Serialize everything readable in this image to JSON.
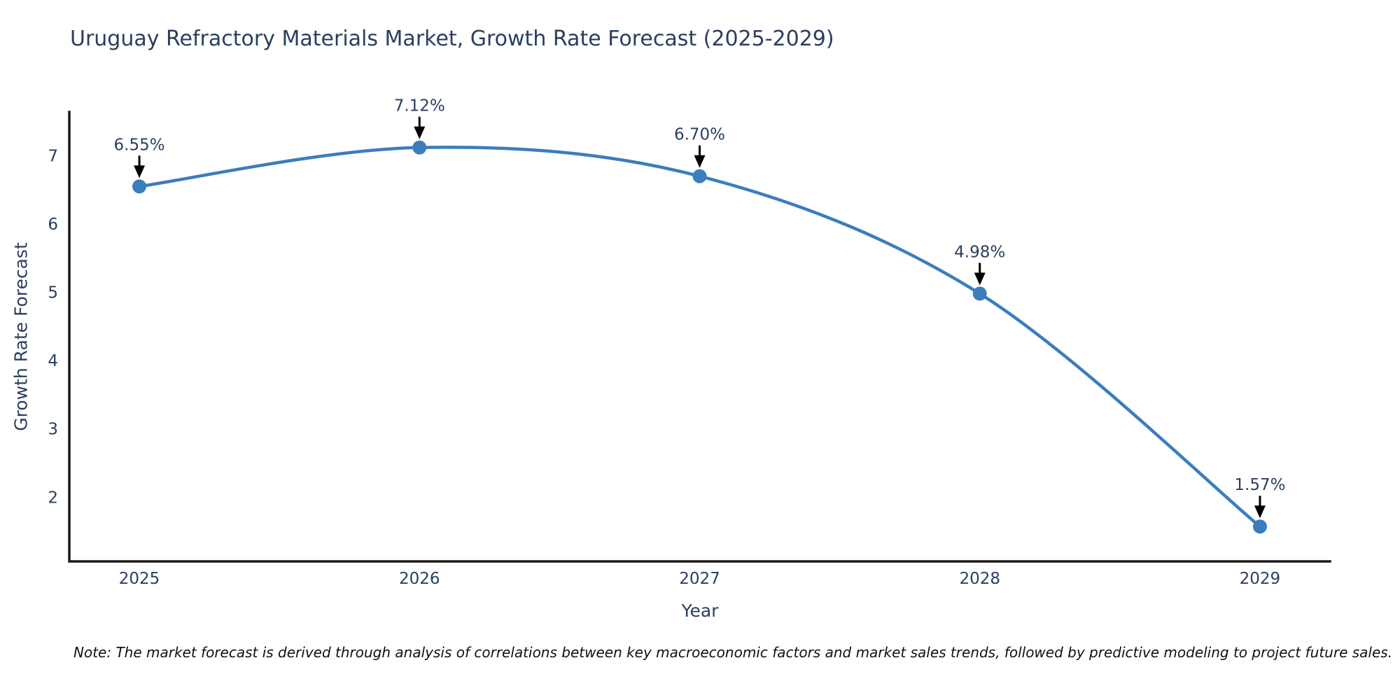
{
  "title": "Uruguay Refractory Materials Market, Growth Rate Forecast (2025-2029)",
  "note": "Note: The market forecast is derived through analysis of correlations between key macroeconomic factors and market sales trends, followed by predictive modeling to project future sales.",
  "chart_data": {
    "type": "line",
    "title": "Uruguay Refractory Materials Market, Growth Rate Forecast (2025-2029)",
    "xlabel": "Year",
    "ylabel": "Growth Rate Forecast",
    "x": [
      2025,
      2026,
      2027,
      2028,
      2029
    ],
    "values": [
      6.55,
      7.12,
      6.7,
      4.98,
      1.57
    ],
    "point_labels": [
      "6.55%",
      "7.12%",
      "6.70%",
      "4.98%",
      "1.57%"
    ],
    "xticks": [
      "2025",
      "2026",
      "2027",
      "2028",
      "2029"
    ],
    "yticks": [
      2,
      3,
      4,
      5,
      6,
      7
    ],
    "xlim": [
      2024.75,
      2029.25
    ],
    "ylim": [
      1.06,
      7.64
    ],
    "grid": false,
    "legend": false,
    "line_shape": "spline",
    "colors": {
      "line": "#3b7dbd",
      "marker": "#3b7dbd",
      "axis": "#1a1a1a",
      "tick_text": "#2a3f5f",
      "annotation_text": "#2a3f5f",
      "annotation_arrow": "#000000"
    }
  }
}
